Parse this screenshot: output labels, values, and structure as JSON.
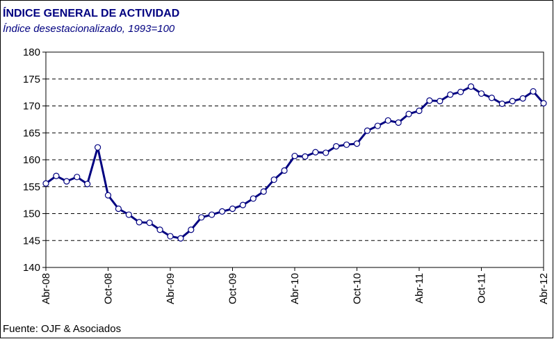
{
  "chart_data": {
    "type": "line",
    "title": "ÍNDICE GENERAL DE ACTIVIDAD",
    "subtitle": "Índice desestacionalizado, 1993=100",
    "source": "Fuente: OJF & Asociados",
    "categories": [
      "Abr-08",
      null,
      null,
      null,
      null,
      null,
      "Oct-08",
      null,
      null,
      null,
      null,
      null,
      "Abr-09",
      null,
      null,
      null,
      null,
      null,
      "Oct-09",
      null,
      null,
      null,
      null,
      null,
      "Abr-10",
      null,
      null,
      null,
      null,
      null,
      "Oct-10",
      null,
      null,
      null,
      null,
      null,
      "Abr-11",
      null,
      null,
      null,
      null,
      null,
      "Oct-11",
      null,
      null,
      null,
      null,
      null,
      "Abr-12"
    ],
    "series": [
      {
        "name": "Índice",
        "color": "#000080",
        "values": [
          155.6,
          157.0,
          156.0,
          156.8,
          155.5,
          162.3,
          153.4,
          150.9,
          149.8,
          148.4,
          148.3,
          147.0,
          145.8,
          145.4,
          147.0,
          149.3,
          149.8,
          150.4,
          150.9,
          151.6,
          152.8,
          154.1,
          156.3,
          158.0,
          160.7,
          160.6,
          161.4,
          161.3,
          162.5,
          162.8,
          163.0,
          165.4,
          166.3,
          167.3,
          166.9,
          168.5,
          169.1,
          171.0,
          170.9,
          172.1,
          172.6,
          173.6,
          172.3,
          171.5,
          170.4,
          170.9,
          171.4,
          172.7,
          170.5
        ]
      }
    ],
    "ylim": [
      140,
      180
    ],
    "yticks": [
      140,
      145,
      150,
      155,
      160,
      165,
      170,
      175,
      180
    ],
    "grid": true
  }
}
